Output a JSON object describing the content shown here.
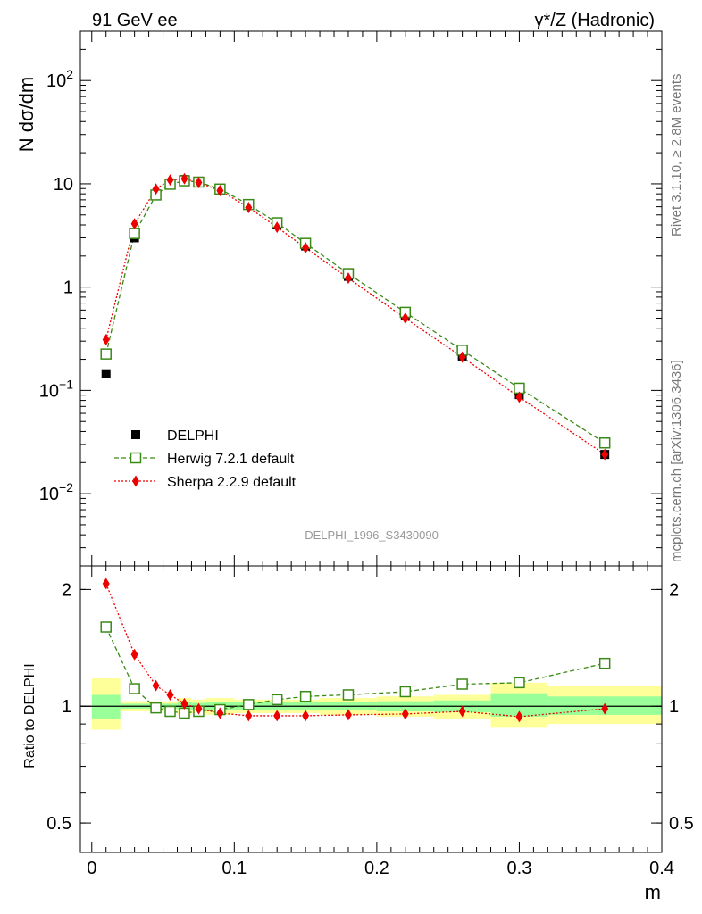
{
  "header": {
    "left_title": "91 GeV ee",
    "right_title_sup": "γ*/Z (Hadronic)"
  },
  "side_labels": {
    "rivet": "Rivet 3.1.10, ≥ 2.8M events",
    "mcplots": "mcplots.cern.ch [arXiv:1306.3436]"
  },
  "watermark": "DELPHI_1996_S3430090",
  "colors": {
    "data": "#000000",
    "herwig": "#3a8a16",
    "sherpa": "#ee0000",
    "band_inner": "#99ff99",
    "band_outer": "#ffff99"
  },
  "chart_data": [
    {
      "type": "line",
      "panel": "main",
      "ylabel": "N dσ/dm",
      "yscale": "log",
      "ylim": [
        0.002,
        300
      ],
      "xlim": [
        -0.008,
        0.4
      ],
      "yticks": [
        {
          "v": 0.01,
          "base": "10",
          "exp": "−2"
        },
        {
          "v": 0.1,
          "base": "10",
          "exp": "−1"
        },
        {
          "v": 1,
          "base": "1",
          "exp": ""
        },
        {
          "v": 10,
          "base": "10",
          "exp": ""
        },
        {
          "v": 100,
          "base": "10",
          "exp": "2"
        }
      ],
      "legend_position": "bottom-left",
      "series": [
        {
          "key": "data",
          "name": "DELPHI",
          "marker": "filled-square",
          "x": [
            0.01,
            0.03,
            0.045,
            0.055,
            0.065,
            0.075,
            0.09,
            0.11,
            0.13,
            0.15,
            0.18,
            0.22,
            0.26,
            0.3,
            0.36
          ],
          "y": [
            0.145,
            3.0,
            7.8,
            10.2,
            11.0,
            10.5,
            8.9,
            6.2,
            4.0,
            2.5,
            1.27,
            0.53,
            0.215,
            0.091,
            0.024
          ]
        },
        {
          "key": "herwig",
          "name": "Herwig 7.2.1 default",
          "marker": "open-square",
          "x": [
            0.01,
            0.03,
            0.045,
            0.055,
            0.065,
            0.075,
            0.09,
            0.11,
            0.13,
            0.15,
            0.18,
            0.22,
            0.26,
            0.3,
            0.36
          ],
          "y": [
            0.225,
            3.3,
            7.8,
            9.9,
            10.7,
            10.4,
            8.9,
            6.3,
            4.2,
            2.65,
            1.35,
            0.57,
            0.245,
            0.105,
            0.031
          ]
        },
        {
          "key": "sherpa",
          "name": "Sherpa 2.2.9 default",
          "marker": "filled-diamond",
          "x": [
            0.01,
            0.03,
            0.045,
            0.055,
            0.065,
            0.075,
            0.09,
            0.11,
            0.13,
            0.15,
            0.18,
            0.22,
            0.26,
            0.3,
            0.36
          ],
          "y": [
            0.31,
            4.1,
            8.9,
            10.9,
            11.2,
            10.3,
            8.6,
            5.9,
            3.8,
            2.4,
            1.22,
            0.5,
            0.21,
            0.086,
            0.024
          ]
        }
      ]
    },
    {
      "type": "line",
      "panel": "ratio",
      "ylabel": "Ratio to DELPHI",
      "xlabel": "m",
      "yscale": "log",
      "ylim": [
        0.42,
        2.3
      ],
      "xlim": [
        -0.008,
        0.4
      ],
      "xticks": [
        0,
        0.1,
        0.2,
        0.3,
        0.4
      ],
      "xtick_labels": [
        "0",
        "0.1",
        "0.2",
        "0.3",
        "0.4"
      ],
      "yticks": [
        0.5,
        1,
        2
      ],
      "ytick_labels": [
        "0.5",
        "1",
        "2"
      ],
      "uncertainty_bands": [
        {
          "x0": 0.0,
          "x1": 0.02,
          "inner": [
            0.93,
            1.07
          ],
          "outer": [
            0.87,
            1.18
          ]
        },
        {
          "x0": 0.02,
          "x1": 0.06,
          "inner": [
            0.985,
            1.015
          ],
          "outer": [
            0.97,
            1.03
          ]
        },
        {
          "x0": 0.06,
          "x1": 0.07,
          "inner": [
            0.975,
            1.025
          ],
          "outer": [
            0.95,
            1.05
          ]
        },
        {
          "x0": 0.07,
          "x1": 0.08,
          "inner": [
            0.98,
            1.02
          ],
          "outer": [
            0.96,
            1.04
          ]
        },
        {
          "x0": 0.08,
          "x1": 0.1,
          "inner": [
            0.975,
            1.025
          ],
          "outer": [
            0.95,
            1.05
          ]
        },
        {
          "x0": 0.1,
          "x1": 0.12,
          "inner": [
            0.975,
            1.025
          ],
          "outer": [
            0.96,
            1.04
          ]
        },
        {
          "x0": 0.12,
          "x1": 0.14,
          "inner": [
            0.975,
            1.025
          ],
          "outer": [
            0.96,
            1.04
          ]
        },
        {
          "x0": 0.14,
          "x1": 0.16,
          "inner": [
            0.975,
            1.025
          ],
          "outer": [
            0.96,
            1.04
          ]
        },
        {
          "x0": 0.16,
          "x1": 0.2,
          "inner": [
            0.975,
            1.025
          ],
          "outer": [
            0.95,
            1.05
          ]
        },
        {
          "x0": 0.2,
          "x1": 0.24,
          "inner": [
            0.97,
            1.03
          ],
          "outer": [
            0.94,
            1.06
          ]
        },
        {
          "x0": 0.24,
          "x1": 0.28,
          "inner": [
            0.965,
            1.035
          ],
          "outer": [
            0.93,
            1.07
          ]
        },
        {
          "x0": 0.28,
          "x1": 0.32,
          "inner": [
            0.94,
            1.08
          ],
          "outer": [
            0.88,
            1.15
          ]
        },
        {
          "x0": 0.32,
          "x1": 0.4,
          "inner": [
            0.95,
            1.06
          ],
          "outer": [
            0.9,
            1.13
          ]
        }
      ],
      "series": [
        {
          "key": "herwig",
          "name": "Herwig 7.2.1 default",
          "x": [
            0.01,
            0.03,
            0.045,
            0.055,
            0.065,
            0.075,
            0.09,
            0.11,
            0.13,
            0.15,
            0.18,
            0.22,
            0.26,
            0.3,
            0.36
          ],
          "y": [
            1.6,
            1.11,
            0.99,
            0.97,
            0.96,
            0.97,
            0.98,
            1.01,
            1.04,
            1.06,
            1.07,
            1.09,
            1.14,
            1.15,
            1.29
          ]
        },
        {
          "key": "sherpa",
          "name": "Sherpa 2.2.9 default",
          "x": [
            0.01,
            0.03,
            0.045,
            0.055,
            0.065,
            0.075,
            0.09,
            0.11,
            0.13,
            0.15,
            0.18,
            0.22,
            0.26,
            0.3,
            0.36
          ],
          "y": [
            2.07,
            1.36,
            1.13,
            1.07,
            1.015,
            0.985,
            0.96,
            0.945,
            0.945,
            0.945,
            0.95,
            0.955,
            0.97,
            0.94,
            0.985
          ]
        }
      ]
    }
  ]
}
